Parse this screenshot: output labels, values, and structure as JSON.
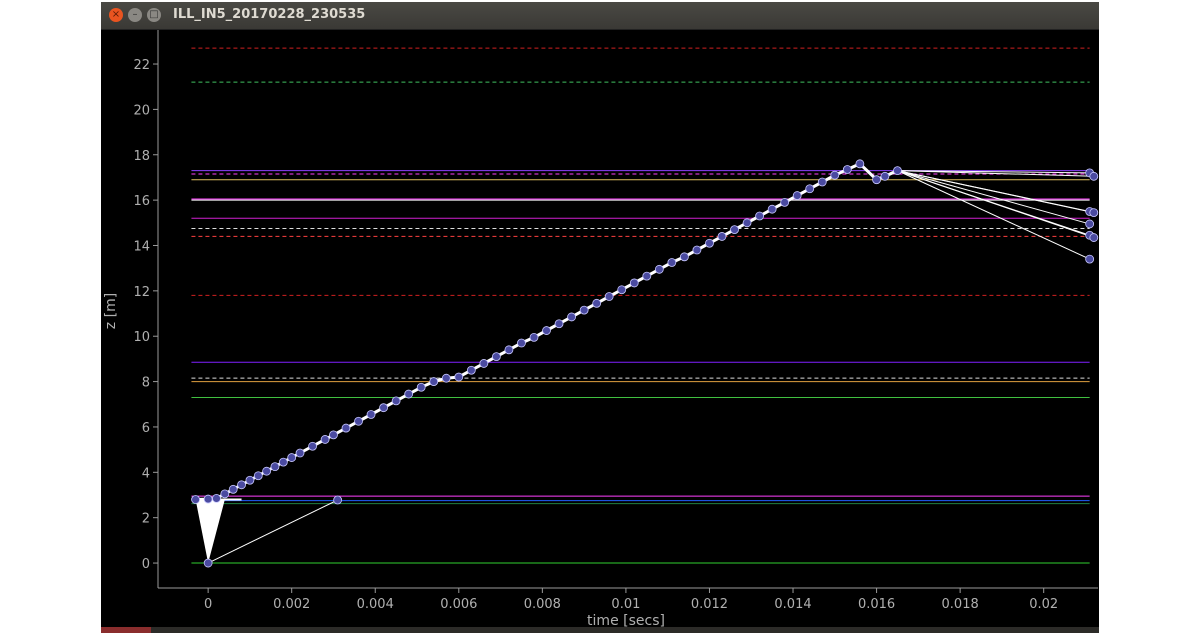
{
  "window": {
    "title": "ILL_IN5_20170228_230535",
    "close_glyph": "×",
    "minimize_glyph": "–",
    "maximize_glyph": "□"
  },
  "chart_data": {
    "type": "scatter",
    "title": "",
    "xlabel": "time [secs]",
    "ylabel": "z [m]",
    "xlim": [
      -0.0012,
      0.0213
    ],
    "ylim": [
      -1.1,
      23.5
    ],
    "xticks": [
      0,
      0.002,
      0.004,
      0.006,
      0.008,
      0.01,
      0.012,
      0.014,
      0.016,
      0.018,
      0.02
    ],
    "xtick_labels": [
      "0",
      "0.002",
      "0.004",
      "0.006",
      "0.008",
      "0.01",
      "0.012",
      "0.014",
      "0.016",
      "0.018",
      "0.02"
    ],
    "yticks": [
      0,
      2,
      4,
      6,
      8,
      10,
      12,
      14,
      16,
      18,
      20,
      22
    ],
    "ytick_labels": [
      "0",
      "2",
      "4",
      "6",
      "8",
      "10",
      "12",
      "14",
      "16",
      "18",
      "20",
      "22"
    ],
    "background": "#000000",
    "axis_color": "#9a9a9a",
    "point_color": "#4a4aa0",
    "line_color": "#ffffff",
    "grid": false,
    "hlines": [
      {
        "y": 22.7,
        "color": "#d02020",
        "dashed": true
      },
      {
        "y": 21.2,
        "color": "#40c060",
        "dashed": true
      },
      {
        "y": 17.3,
        "color": "#9040ff",
        "dashed": false
      },
      {
        "y": 17.15,
        "color": "#ff40ff",
        "dashed": true
      },
      {
        "y": 16.9,
        "color": "#e0c060",
        "dashed": false
      },
      {
        "y": 16.05,
        "color": "#ff40ff",
        "dashed": false
      },
      {
        "y": 16.0,
        "color": "#ffffff",
        "dashed": false
      },
      {
        "y": 15.2,
        "color": "#d020d0",
        "dashed": false
      },
      {
        "y": 14.75,
        "color": "#dddddd",
        "dashed": true
      },
      {
        "y": 14.4,
        "color": "#ff4040",
        "dashed": true
      },
      {
        "y": 11.8,
        "color": "#d02020",
        "dashed": true
      },
      {
        "y": 8.85,
        "color": "#8020ff",
        "dashed": false
      },
      {
        "y": 8.15,
        "color": "#dddddd",
        "dashed": true
      },
      {
        "y": 8.0,
        "color": "#e0a040",
        "dashed": false
      },
      {
        "y": 7.3,
        "color": "#40c040",
        "dashed": false
      },
      {
        "y": 2.95,
        "color": "#ff40ff",
        "dashed": false
      },
      {
        "y": 2.75,
        "color": "#2060ff",
        "dashed": false
      },
      {
        "y": 2.62,
        "color": "#208040",
        "dashed": false
      },
      {
        "y": 0.0,
        "color": "#30d030",
        "dashed": false
      }
    ],
    "series": [
      {
        "kind": "main-trajectory",
        "points": [
          [
            -0.0003,
            2.8
          ],
          [
            0.0,
            2.82
          ],
          [
            0.0002,
            2.85
          ],
          [
            0.0004,
            3.05
          ],
          [
            0.0006,
            3.25
          ],
          [
            0.0008,
            3.45
          ],
          [
            0.001,
            3.65
          ],
          [
            0.0012,
            3.85
          ],
          [
            0.0014,
            4.05
          ],
          [
            0.0016,
            4.25
          ],
          [
            0.0018,
            4.45
          ],
          [
            0.002,
            4.65
          ],
          [
            0.0022,
            4.85
          ],
          [
            0.0025,
            5.15
          ],
          [
            0.0028,
            5.45
          ],
          [
            0.003,
            5.65
          ],
          [
            0.0033,
            5.95
          ],
          [
            0.0036,
            6.25
          ],
          [
            0.0039,
            6.55
          ],
          [
            0.0042,
            6.85
          ],
          [
            0.0045,
            7.15
          ],
          [
            0.0048,
            7.45
          ],
          [
            0.0051,
            7.75
          ],
          [
            0.0054,
            8.0
          ],
          [
            0.0057,
            8.15
          ],
          [
            0.006,
            8.2
          ],
          [
            0.0063,
            8.5
          ],
          [
            0.0066,
            8.8
          ],
          [
            0.0069,
            9.1
          ],
          [
            0.0072,
            9.4
          ],
          [
            0.0075,
            9.7
          ],
          [
            0.0078,
            9.95
          ],
          [
            0.0081,
            10.25
          ],
          [
            0.0084,
            10.55
          ],
          [
            0.0087,
            10.85
          ],
          [
            0.009,
            11.15
          ],
          [
            0.0093,
            11.45
          ],
          [
            0.0096,
            11.75
          ],
          [
            0.0099,
            12.05
          ],
          [
            0.0102,
            12.35
          ],
          [
            0.0105,
            12.65
          ],
          [
            0.0108,
            12.95
          ],
          [
            0.0111,
            13.25
          ],
          [
            0.0114,
            13.5
          ],
          [
            0.0117,
            13.8
          ],
          [
            0.012,
            14.1
          ],
          [
            0.0123,
            14.4
          ],
          [
            0.0126,
            14.7
          ],
          [
            0.0129,
            15.0
          ],
          [
            0.0132,
            15.3
          ],
          [
            0.0135,
            15.6
          ],
          [
            0.0138,
            15.9
          ],
          [
            0.0141,
            16.2
          ],
          [
            0.0144,
            16.5
          ],
          [
            0.0147,
            16.8
          ],
          [
            0.015,
            17.1
          ],
          [
            0.0153,
            17.35
          ],
          [
            0.0156,
            17.6
          ],
          [
            0.016,
            16.9
          ],
          [
            0.0162,
            17.05
          ],
          [
            0.0165,
            17.3
          ]
        ]
      },
      {
        "kind": "fan-endpoints",
        "points": [
          [
            0.0211,
            17.2
          ],
          [
            0.0212,
            17.05
          ],
          [
            0.0211,
            15.5
          ],
          [
            0.0212,
            15.45
          ],
          [
            0.0211,
            14.95
          ],
          [
            0.0211,
            14.45
          ],
          [
            0.0212,
            14.35
          ],
          [
            0.0211,
            13.4
          ]
        ]
      },
      {
        "kind": "origin-points",
        "points": [
          [
            0.0,
            0.0
          ],
          [
            0.0031,
            2.78
          ]
        ]
      }
    ]
  }
}
